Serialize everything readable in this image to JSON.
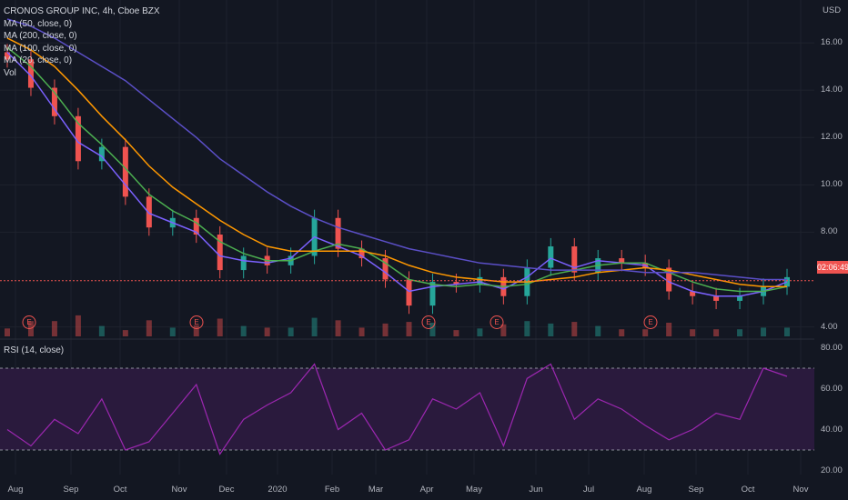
{
  "header": {
    "title": "CRONOS GROUP INC, 4h, Cboe BZX",
    "indicators": [
      "MA (50, close, 0)",
      "MA (200, close, 0)",
      "MA (100, close, 0)",
      "MA (20, close, 0)",
      "Vol"
    ],
    "rsi_label": "RSI (14, close)",
    "currency": "USD",
    "price_tag": "02:06:49"
  },
  "colors": {
    "background": "#131722",
    "grid": "#1e222d",
    "candle_up": "#26a69a",
    "candle_down": "#ef5350",
    "ma20": "#7b61ff",
    "ma50": "#4caf50",
    "ma100": "#ff9800",
    "ma200": "#5b4fc7",
    "rsi_line": "#9c27b0",
    "rsi_band": "#2a1a3d",
    "price_line": "#ef5350"
  },
  "chart_data": {
    "type": "line",
    "xlabel": "",
    "ylabel": "",
    "x_ticks": [
      "Aug",
      "Sep",
      "Oct",
      "Nov",
      "Dec",
      "2020",
      "Feb",
      "Mar",
      "Apr",
      "May",
      "Jun",
      "Jul",
      "Aug",
      "Sep",
      "Oct",
      "Nov"
    ],
    "y_ticks": [
      "16.00",
      "14.00",
      "12.00",
      "10.00",
      "8.00",
      "4.00"
    ],
    "ylim": [
      3.6,
      17.5
    ],
    "price_series": {
      "x": [
        "2019-07-22",
        "2019-08-05",
        "2019-08-19",
        "2019-09-02",
        "2019-09-16",
        "2019-09-30",
        "2019-10-14",
        "2019-10-28",
        "2019-11-11",
        "2019-11-25",
        "2019-12-09",
        "2019-12-23",
        "2020-01-06",
        "2020-01-20",
        "2020-02-03",
        "2020-02-17",
        "2020-03-02",
        "2020-03-16",
        "2020-03-30",
        "2020-04-13",
        "2020-04-27",
        "2020-05-11",
        "2020-05-25",
        "2020-06-08",
        "2020-06-22",
        "2020-07-06",
        "2020-07-20",
        "2020-08-03",
        "2020-08-17",
        "2020-08-31",
        "2020-09-14",
        "2020-09-28",
        "2020-10-12",
        "2020-10-22"
      ],
      "close": [
        15.3,
        14.1,
        12.9,
        11.0,
        11.6,
        9.5,
        8.2,
        8.6,
        7.9,
        6.4,
        7.0,
        6.6,
        7.0,
        8.6,
        7.3,
        6.9,
        6.0,
        4.9,
        5.9,
        5.8,
        6.1,
        5.3,
        6.5,
        7.4,
        6.3,
        6.9,
        6.7,
        6.5,
        5.5,
        5.3,
        5.1,
        5.3,
        5.7,
        6.1
      ]
    },
    "ma_series": [
      {
        "name": "MA (20, close, 0)",
        "values": [
          15.6,
          14.6,
          13.2,
          11.8,
          11.2,
          10.0,
          8.8,
          8.4,
          8.0,
          7.0,
          6.8,
          6.7,
          6.9,
          7.8,
          7.4,
          7.0,
          6.3,
          5.5,
          5.7,
          5.8,
          5.9,
          5.6,
          6.1,
          6.9,
          6.5,
          6.8,
          6.7,
          6.6,
          5.9,
          5.5,
          5.3,
          5.3,
          5.5,
          5.9
        ]
      },
      {
        "name": "MA (50, close, 0)",
        "values": [
          15.8,
          15.0,
          13.9,
          12.6,
          11.7,
          10.7,
          9.6,
          8.9,
          8.4,
          7.6,
          7.1,
          6.8,
          6.8,
          7.2,
          7.5,
          7.3,
          6.7,
          6.0,
          5.8,
          5.7,
          5.8,
          5.7,
          5.8,
          6.2,
          6.4,
          6.6,
          6.7,
          6.7,
          6.3,
          5.9,
          5.6,
          5.5,
          5.5,
          5.7
        ]
      },
      {
        "name": "MA (100, close, 0)",
        "values": [
          16.2,
          15.7,
          15.0,
          14.0,
          12.9,
          11.9,
          10.8,
          9.9,
          9.2,
          8.5,
          7.9,
          7.4,
          7.2,
          7.2,
          7.2,
          7.2,
          7.0,
          6.6,
          6.3,
          6.1,
          6.0,
          5.9,
          5.9,
          6.0,
          6.1,
          6.3,
          6.4,
          6.5,
          6.4,
          6.2,
          6.0,
          5.8,
          5.7,
          5.7
        ]
      },
      {
        "name": "MA (200, close, 0)",
        "values": [
          17.0,
          16.7,
          16.2,
          15.6,
          15.0,
          14.4,
          13.6,
          12.8,
          12.0,
          11.1,
          10.4,
          9.7,
          9.1,
          8.6,
          8.2,
          7.9,
          7.6,
          7.3,
          7.1,
          6.9,
          6.7,
          6.6,
          6.5,
          6.4,
          6.4,
          6.4,
          6.4,
          6.3,
          6.3,
          6.3,
          6.2,
          6.1,
          6.0,
          6.0
        ]
      }
    ],
    "earnings_markers": [
      "Aug",
      "Nov",
      "Mar",
      "May",
      "Aug"
    ],
    "rsi": {
      "ylim": [
        18,
        82
      ],
      "y_ticks": [
        "80.00",
        "60.00",
        "40.00",
        "20.00"
      ],
      "bands": [
        30,
        70
      ],
      "values": [
        40,
        32,
        45,
        38,
        55,
        30,
        34,
        48,
        62,
        28,
        45,
        52,
        58,
        72,
        40,
        48,
        30,
        35,
        55,
        50,
        58,
        32,
        65,
        72,
        45,
        55,
        50,
        42,
        35,
        40,
        48,
        45,
        70,
        66
      ]
    },
    "current_price": 5.95
  }
}
